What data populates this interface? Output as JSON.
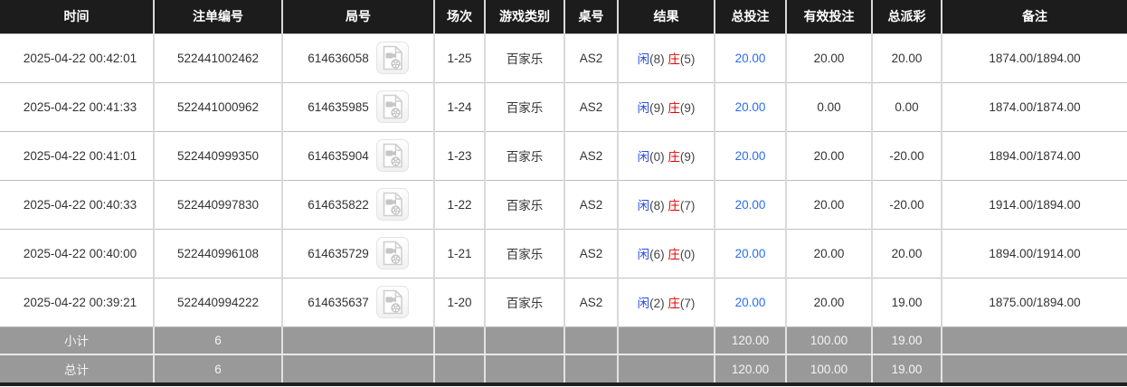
{
  "colors": {
    "accent_blue": "#2a6ded",
    "player_blue": "#2a4fdf",
    "banker_red": "#e60000",
    "negative_red": "#f21c1c",
    "header_bg": "#1c1c1c",
    "summary_bg": "#999999"
  },
  "table": {
    "columns": [
      {
        "key": "time",
        "label": "时间"
      },
      {
        "key": "bet-id",
        "label": "注单编号"
      },
      {
        "key": "round-id",
        "label": "局号"
      },
      {
        "key": "session",
        "label": "场次"
      },
      {
        "key": "game-type",
        "label": "游戏类别"
      },
      {
        "key": "table-no",
        "label": "桌号"
      },
      {
        "key": "result",
        "label": "结果"
      },
      {
        "key": "total-bet",
        "label": "总投注"
      },
      {
        "key": "valid-bet",
        "label": "有效投注"
      },
      {
        "key": "total-payout",
        "label": "总派彩"
      },
      {
        "key": "remark",
        "label": "备注"
      }
    ],
    "rows": [
      {
        "time": "2025-04-22 00:42:01",
        "bet_id": "522441002462",
        "round_id": "614636058",
        "session": "1-25",
        "game_type": "百家乐",
        "table_no": "AS2",
        "result": {
          "player_text": "闲",
          "player_num": "(8)",
          "banker_text": "庄",
          "banker_num": "(5)"
        },
        "total_bet": "20.00",
        "valid_bet": "20.00",
        "total_payout": "20.00",
        "remark": "1874.00/1894.00"
      },
      {
        "time": "2025-04-22 00:41:33",
        "bet_id": "522441000962",
        "round_id": "614635985",
        "session": "1-24",
        "game_type": "百家乐",
        "table_no": "AS2",
        "result": {
          "player_text": "闲",
          "player_num": "(9)",
          "banker_text": "庄",
          "banker_num": "(9)"
        },
        "total_bet": "20.00",
        "valid_bet": "0.00",
        "total_payout": "0.00",
        "remark": "1874.00/1874.00"
      },
      {
        "time": "2025-04-22 00:41:01",
        "bet_id": "522440999350",
        "round_id": "614635904",
        "session": "1-23",
        "game_type": "百家乐",
        "table_no": "AS2",
        "result": {
          "player_text": "闲",
          "player_num": "(0)",
          "banker_text": "庄",
          "banker_num": "(9)"
        },
        "total_bet": "20.00",
        "valid_bet": "20.00",
        "total_payout": "-20.00",
        "remark": "1894.00/1874.00"
      },
      {
        "time": "2025-04-22 00:40:33",
        "bet_id": "522440997830",
        "round_id": "614635822",
        "session": "1-22",
        "game_type": "百家乐",
        "table_no": "AS2",
        "result": {
          "player_text": "闲",
          "player_num": "(8)",
          "banker_text": "庄",
          "banker_num": "(7)"
        },
        "total_bet": "20.00",
        "valid_bet": "20.00",
        "total_payout": "-20.00",
        "remark": "1914.00/1894.00"
      },
      {
        "time": "2025-04-22 00:40:00",
        "bet_id": "522440996108",
        "round_id": "614635729",
        "session": "1-21",
        "game_type": "百家乐",
        "table_no": "AS2",
        "result": {
          "player_text": "闲",
          "player_num": "(6)",
          "banker_text": "庄",
          "banker_num": "(0)"
        },
        "total_bet": "20.00",
        "valid_bet": "20.00",
        "total_payout": "20.00",
        "remark": "1894.00/1914.00"
      },
      {
        "time": "2025-04-22 00:39:21",
        "bet_id": "522440994222",
        "round_id": "614635637",
        "session": "1-20",
        "game_type": "百家乐",
        "table_no": "AS2",
        "result": {
          "player_text": "闲",
          "player_num": "(2)",
          "banker_text": "庄",
          "banker_num": "(7)"
        },
        "total_bet": "20.00",
        "valid_bet": "20.00",
        "total_payout": "19.00",
        "remark": "1875.00/1894.00"
      }
    ],
    "summary_rows": [
      {
        "label": "小计",
        "count": "6",
        "total_bet": "120.00",
        "valid_bet": "100.00",
        "total_payout": "19.00"
      },
      {
        "label": "总计",
        "count": "6",
        "total_bet": "120.00",
        "valid_bet": "100.00",
        "total_payout": "19.00"
      }
    ]
  }
}
